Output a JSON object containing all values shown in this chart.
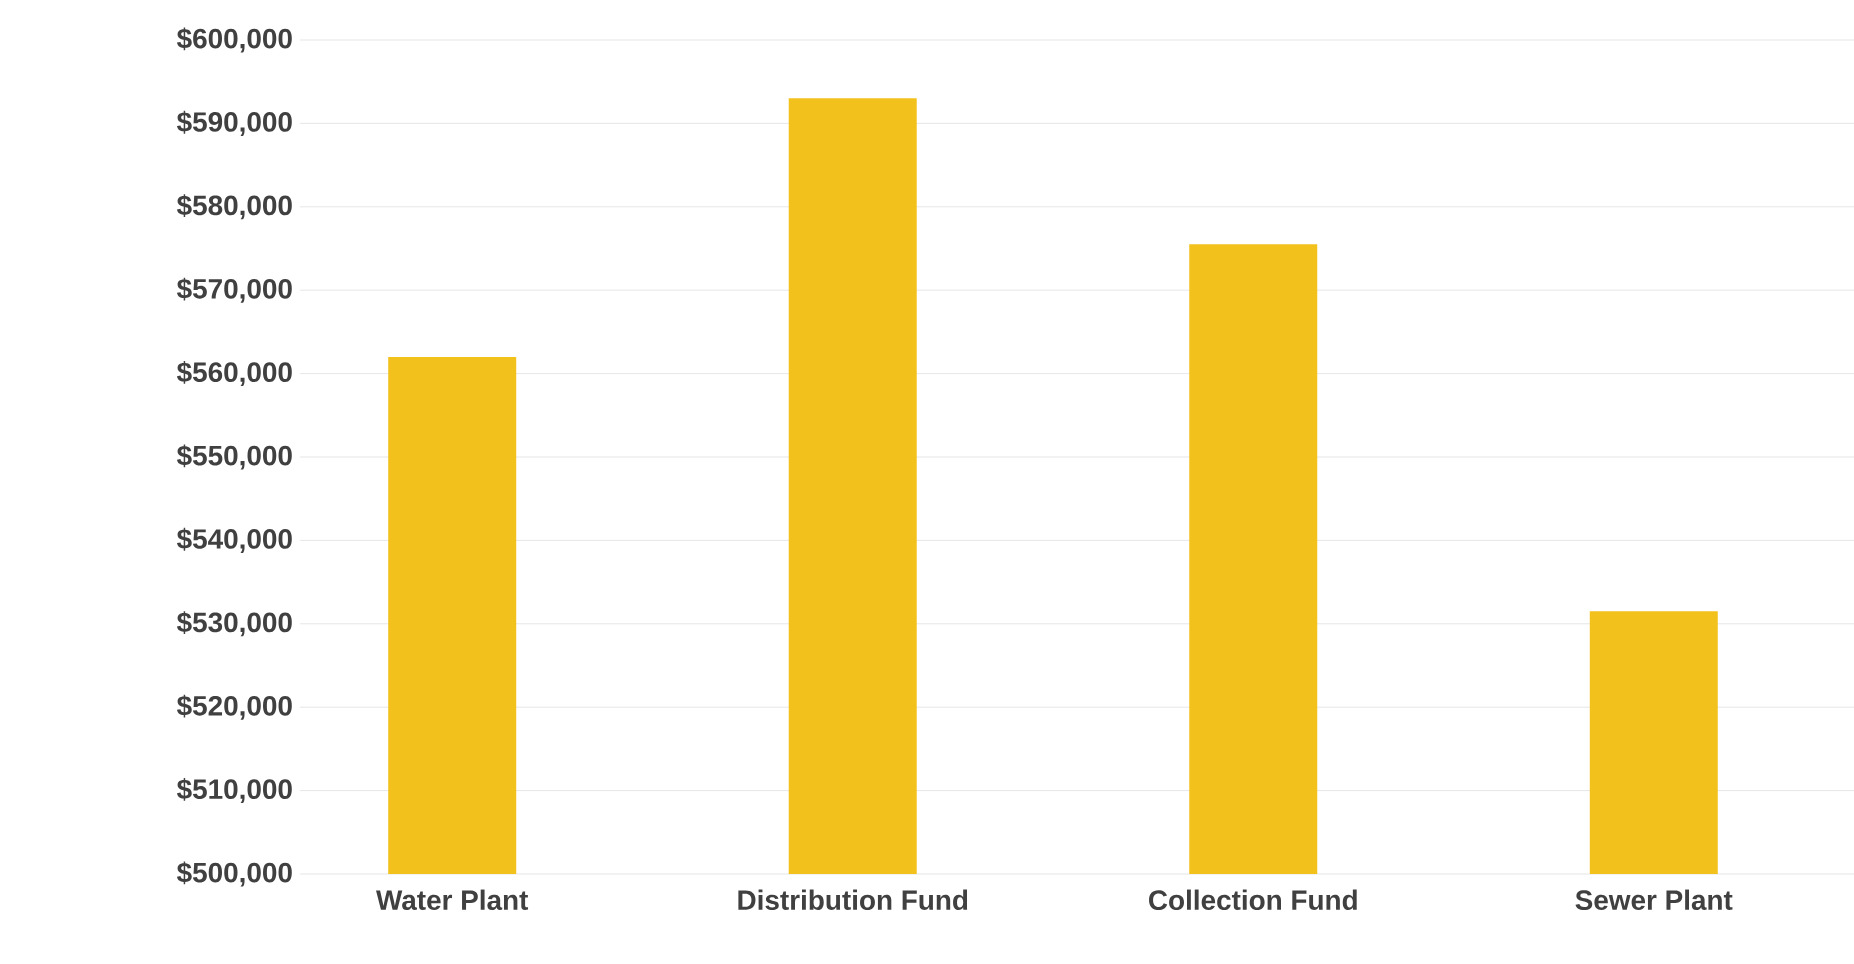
{
  "chart_data": {
    "type": "bar",
    "categories": [
      "Water Plant",
      "Distribution Fund",
      "Collection Fund",
      "Sewer Plant"
    ],
    "values": [
      562000,
      593000,
      575500,
      531500
    ],
    "color": "#f2c11c",
    "ylim": [
      500000,
      600000
    ],
    "yticks": [
      {
        "value": 500000,
        "label": "$500,000"
      },
      {
        "value": 510000,
        "label": "$510,000"
      },
      {
        "value": 520000,
        "label": "$520,000"
      },
      {
        "value": 530000,
        "label": "$530,000"
      },
      {
        "value": 540000,
        "label": "$540,000"
      },
      {
        "value": 550000,
        "label": "$550,000"
      },
      {
        "value": 560000,
        "label": "$560,000"
      },
      {
        "value": 570000,
        "label": "$570,000"
      },
      {
        "value": 580000,
        "label": "$580,000"
      },
      {
        "value": 590000,
        "label": "$590,000"
      },
      {
        "value": 600000,
        "label": "$600,000"
      }
    ],
    "grid": "y"
  }
}
